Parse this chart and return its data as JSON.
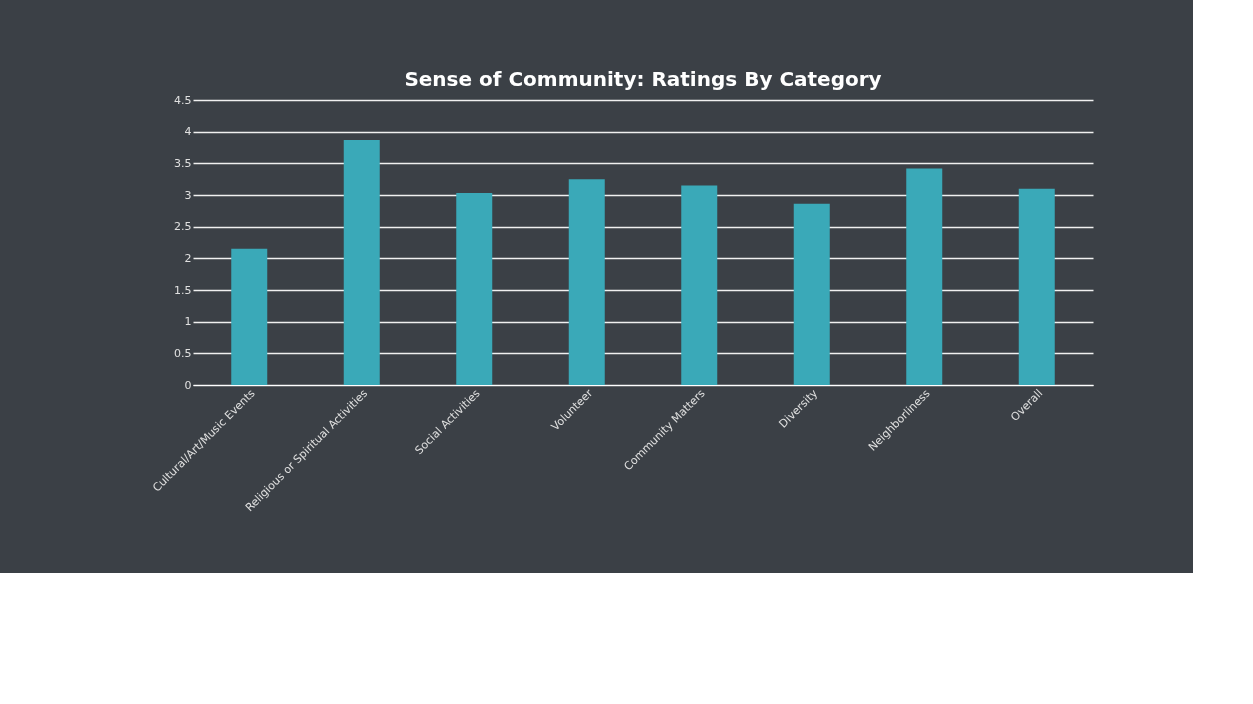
{
  "chart_data": {
    "type": "bar",
    "title": "Sense of Community: Ratings By Category",
    "categories": [
      "Cultural/Art/Music Events",
      "Religious or Spiritual Activities",
      "Social Activities",
      "Volunteer",
      "Community Matters",
      "Diversity",
      "Neighborliness",
      "Overall"
    ],
    "values": [
      2.15,
      3.87,
      3.03,
      3.25,
      3.15,
      2.86,
      3.42,
      3.1
    ],
    "color": "#3aa9b8",
    "ylim": [
      0,
      4.5
    ],
    "yticks": [
      0,
      0.5,
      1,
      1.5,
      2,
      2.5,
      3,
      3.5,
      4,
      4.5
    ],
    "grid": "y"
  }
}
